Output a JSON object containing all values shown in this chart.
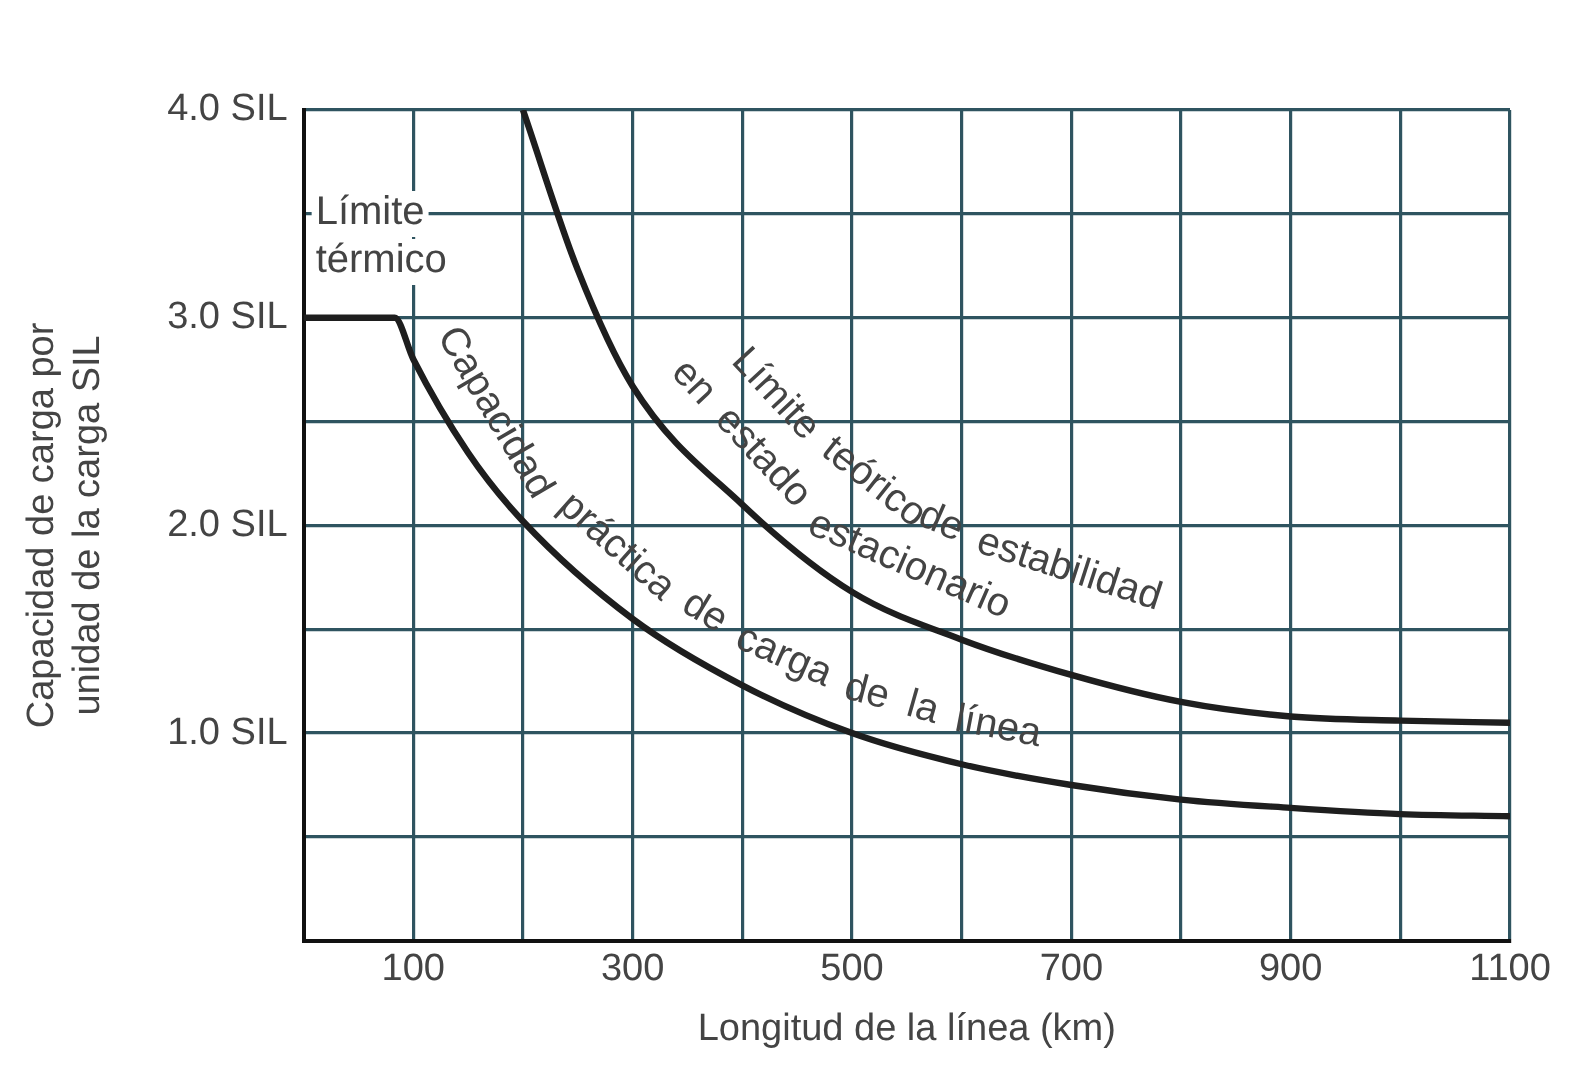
{
  "chart_data": {
    "type": "line",
    "xlabel": "Longitud de la línea (km)",
    "ylabel": "Capacidad de carga por\nunidad de la carga SIL",
    "xlim": [
      0,
      1100
    ],
    "xticks": [
      {
        "value": 0,
        "label": null
      },
      100,
      {
        "value": 200,
        "label": null
      },
      300,
      {
        "value": 400,
        "label": null
      },
      500,
      {
        "value": 600,
        "label": null
      },
      700,
      {
        "value": 800,
        "label": null
      },
      900,
      {
        "value": 1000,
        "label": null
      },
      1100
    ],
    "ylim": [
      0,
      4
    ],
    "yticks": [
      {
        "value": 0,
        "label": null
      },
      {
        "value": 0.5,
        "label": null
      },
      {
        "value": 1,
        "label": "1.0 SIL"
      },
      {
        "value": 1.5,
        "label": null
      },
      {
        "value": 2,
        "label": "2.0 SIL"
      },
      {
        "value": 2.5,
        "label": null
      },
      {
        "value": 3,
        "label": "3.0 SIL"
      },
      {
        "value": 3.5,
        "label": null
      },
      {
        "value": 4,
        "label": "4.0 SIL"
      }
    ],
    "grid": true,
    "legend": false,
    "series": [
      {
        "color": "#1e1e1e",
        "x": [
          0,
          83,
          100,
          150,
          200,
          300,
          400,
          500,
          600,
          700,
          800,
          900,
          1000,
          1100
        ],
        "values": [
          3,
          3,
          2.8,
          2.35,
          2.02,
          1.55,
          1.23,
          1.0,
          0.85,
          0.75,
          0.68,
          0.64,
          0.61,
          0.6
        ]
      },
      {
        "color": "#1e1e1e",
        "x": [
          200,
          250,
          300,
          400,
          500,
          600,
          700,
          800,
          900,
          1000,
          1100
        ],
        "values": [
          4,
          3.23,
          2.67,
          2.1,
          1.68,
          1.45,
          1.28,
          1.15,
          1.08,
          1.06,
          1.05
        ]
      }
    ],
    "annotations": [
      "Límite\ntérmico",
      {
        "text": "Capacidad práctica de carga de la línea",
        "x": 95,
        "y": 2.85
      },
      {
        "text": "Límite teórico de estabilidad",
        "x": 330,
        "y": 2.52
      },
      {
        "text": "en estado estacionario",
        "x": 310,
        "y": 2.61
      }
    ]
  }
}
